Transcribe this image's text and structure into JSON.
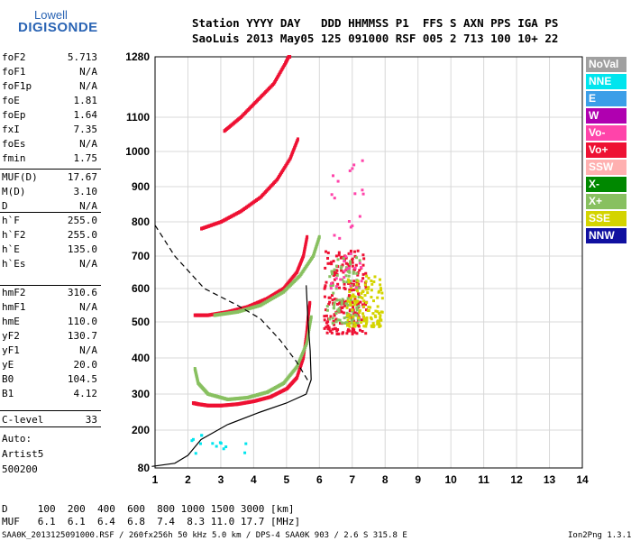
{
  "logo": {
    "line1": "Lowell",
    "line2": "DIGISONDE"
  },
  "header": {
    "row1": "Station YYYY DAY   DDD HHMMSS P1  FFS S AXN PPS IGA PS",
    "row2": "SaoLuis 2013 May05 125 091000 RSF 005 2 713 100 10+ 22"
  },
  "params": [
    {
      "k": "foF2",
      "v": "5.713"
    },
    {
      "k": "foF1",
      "v": "N/A"
    },
    {
      "k": "foF1p",
      "v": "N/A"
    },
    {
      "k": "foE",
      "v": "1.81"
    },
    {
      "k": "foEp",
      "v": "1.64"
    },
    {
      "k": "fxI",
      "v": "7.35"
    },
    {
      "k": "foEs",
      "v": "N/A"
    },
    {
      "k": "fmin",
      "v": "1.75"
    },
    {
      "k": "MUF(D)",
      "v": "17.67"
    },
    {
      "k": "M(D)",
      "v": "3.10"
    },
    {
      "k": "D",
      "v": "N/A"
    },
    {
      "k": "h`F",
      "v": "255.0"
    },
    {
      "k": "h`F2",
      "v": "255.0"
    },
    {
      "k": "h`E",
      "v": "135.0"
    },
    {
      "k": "h`Es",
      "v": "N/A"
    },
    {
      "k": "hmF2",
      "v": "310.6"
    },
    {
      "k": "hmF1",
      "v": "N/A"
    },
    {
      "k": "hmE",
      "v": "110.0"
    },
    {
      "k": "yF2",
      "v": "130.7"
    },
    {
      "k": "yF1",
      "v": "N/A"
    },
    {
      "k": "yE",
      "v": "20.0"
    },
    {
      "k": "B0",
      "v": "104.5"
    },
    {
      "k": "B1",
      "v": "4.12"
    },
    {
      "k": "C-level",
      "v": "33"
    }
  ],
  "auto": {
    "line1": "Auto:",
    "line2": "Artist5",
    "line3": "500200"
  },
  "legend": [
    {
      "label": "NoVal",
      "color": "#a0a0a0"
    },
    {
      "label": "NNE",
      "color": "#00e5ee"
    },
    {
      "label": "E",
      "color": "#3b9ee8"
    },
    {
      "label": "W",
      "color": "#b000b0"
    },
    {
      "label": "Vo-",
      "color": "#ff44aa"
    },
    {
      "label": "Vo+",
      "color": "#ee1133"
    },
    {
      "label": "SSW",
      "color": "#ffb0b0"
    },
    {
      "label": "X-",
      "color": "#008800"
    },
    {
      "label": "X+",
      "color": "#88c060"
    },
    {
      "label": "SSE",
      "color": "#d4d400"
    },
    {
      "label": "NNW",
      "color": "#1010a0"
    }
  ],
  "bottom": {
    "d_line": "D     100  200  400  600  800 1000 1500 3000 [km]",
    "muf_line": "MUF   6.1  6.1  6.4  6.8  7.4  8.3 11.0 17.7 [MHz]"
  },
  "footer": {
    "left": "SAA0K_2013125091000.RSF / 260fx256h 50 kHz 5.0 km / DPS-4 SAA0K 903 / 2.6 S 315.8 E",
    "right": "Ion2Png 1.3.17"
  },
  "chart_data": {
    "type": "scatter",
    "x_ticks": [
      1,
      2,
      3,
      4,
      5,
      6,
      7,
      8,
      9,
      10,
      11,
      12,
      13,
      14
    ],
    "y_ticks": [
      80,
      200,
      300,
      400,
      500,
      600,
      700,
      800,
      900,
      1000,
      1100,
      1280
    ],
    "xlim": [
      1,
      14
    ],
    "ylim": [
      80,
      1280
    ],
    "grid": true,
    "traces": [
      {
        "name": "Vo+",
        "color": "#ee1133",
        "points": [
          [
            2.15,
            275
          ],
          [
            2.3,
            272
          ],
          [
            2.6,
            268
          ],
          [
            3,
            268
          ],
          [
            3.5,
            272
          ],
          [
            4,
            280
          ],
          [
            4.5,
            292
          ],
          [
            5,
            315
          ],
          [
            5.3,
            345
          ],
          [
            5.5,
            400
          ],
          [
            5.6,
            470
          ],
          [
            5.65,
            520
          ],
          [
            5.7,
            560
          ]
        ]
      },
      {
        "name": "Vo+",
        "color": "#ee1133",
        "points": [
          [
            2.2,
            520
          ],
          [
            2.6,
            520
          ],
          [
            3.2,
            530
          ],
          [
            3.8,
            545
          ],
          [
            4.4,
            570
          ],
          [
            4.9,
            600
          ],
          [
            5.3,
            650
          ],
          [
            5.5,
            700
          ],
          [
            5.62,
            760
          ]
        ]
      },
      {
        "name": "Vo+",
        "color": "#ee1133",
        "points": [
          [
            2.4,
            780
          ],
          [
            3,
            800
          ],
          [
            3.6,
            830
          ],
          [
            4.2,
            870
          ],
          [
            4.7,
            920
          ],
          [
            5.1,
            980
          ],
          [
            5.35,
            1040
          ]
        ]
      },
      {
        "name": "Vo+",
        "color": "#ee1133",
        "points": [
          [
            3.1,
            1060
          ],
          [
            3.6,
            1100
          ],
          [
            4.1,
            1150
          ],
          [
            4.6,
            1200
          ],
          [
            4.95,
            1260
          ],
          [
            5.1,
            1290
          ]
        ]
      },
      {
        "name": "X+",
        "color": "#88c060",
        "points": [
          [
            2.2,
            370
          ],
          [
            2.3,
            330
          ],
          [
            2.6,
            300
          ],
          [
            3.2,
            285
          ],
          [
            3.8,
            290
          ],
          [
            4.4,
            305
          ],
          [
            4.9,
            330
          ],
          [
            5.3,
            375
          ],
          [
            5.6,
            440
          ],
          [
            5.75,
            520
          ]
        ]
      },
      {
        "name": "X+",
        "color": "#88c060",
        "points": [
          [
            2.8,
            520
          ],
          [
            3.5,
            530
          ],
          [
            4.2,
            550
          ],
          [
            4.9,
            590
          ],
          [
            5.4,
            640
          ],
          [
            5.8,
            700
          ],
          [
            6.0,
            760
          ]
        ]
      }
    ],
    "scatter_clusters": [
      {
        "name": "Vo+",
        "color": "#ee1133",
        "x": [
          6.1,
          7.4
        ],
        "y": [
          470,
          720
        ],
        "n": 220
      },
      {
        "name": "X+",
        "color": "#88c060",
        "x": [
          6.2,
          7.2
        ],
        "y": [
          500,
          700
        ],
        "n": 90
      },
      {
        "name": "SSE",
        "color": "#d4d400",
        "x": [
          6.8,
          7.9
        ],
        "y": [
          490,
          650
        ],
        "n": 120
      },
      {
        "name": "Vo-",
        "color": "#ff44aa",
        "x": [
          6.3,
          7.3
        ],
        "y": [
          600,
          1000
        ],
        "n": 35
      },
      {
        "name": "NNE",
        "color": "#00e5ee",
        "x": [
          2.0,
          3.8
        ],
        "y": [
          130,
          190
        ],
        "n": 14
      }
    ],
    "profile_solid": [
      [
        0.9,
        85
      ],
      [
        1.6,
        95
      ],
      [
        2.0,
        120
      ],
      [
        2.4,
        170
      ],
      [
        3.2,
        215
      ],
      [
        4.2,
        250
      ],
      [
        5.0,
        275
      ],
      [
        5.6,
        300
      ],
      [
        5.75,
        340
      ],
      [
        5.72,
        420
      ],
      [
        5.65,
        510
      ],
      [
        5.6,
        610
      ]
    ],
    "profile_dashed": [
      [
        1,
        790
      ],
      [
        1.6,
        700
      ],
      [
        2.5,
        600
      ],
      [
        3.5,
        550
      ],
      [
        4.2,
        510
      ],
      [
        4.8,
        450
      ],
      [
        5.3,
        390
      ],
      [
        5.7,
        330
      ]
    ]
  }
}
